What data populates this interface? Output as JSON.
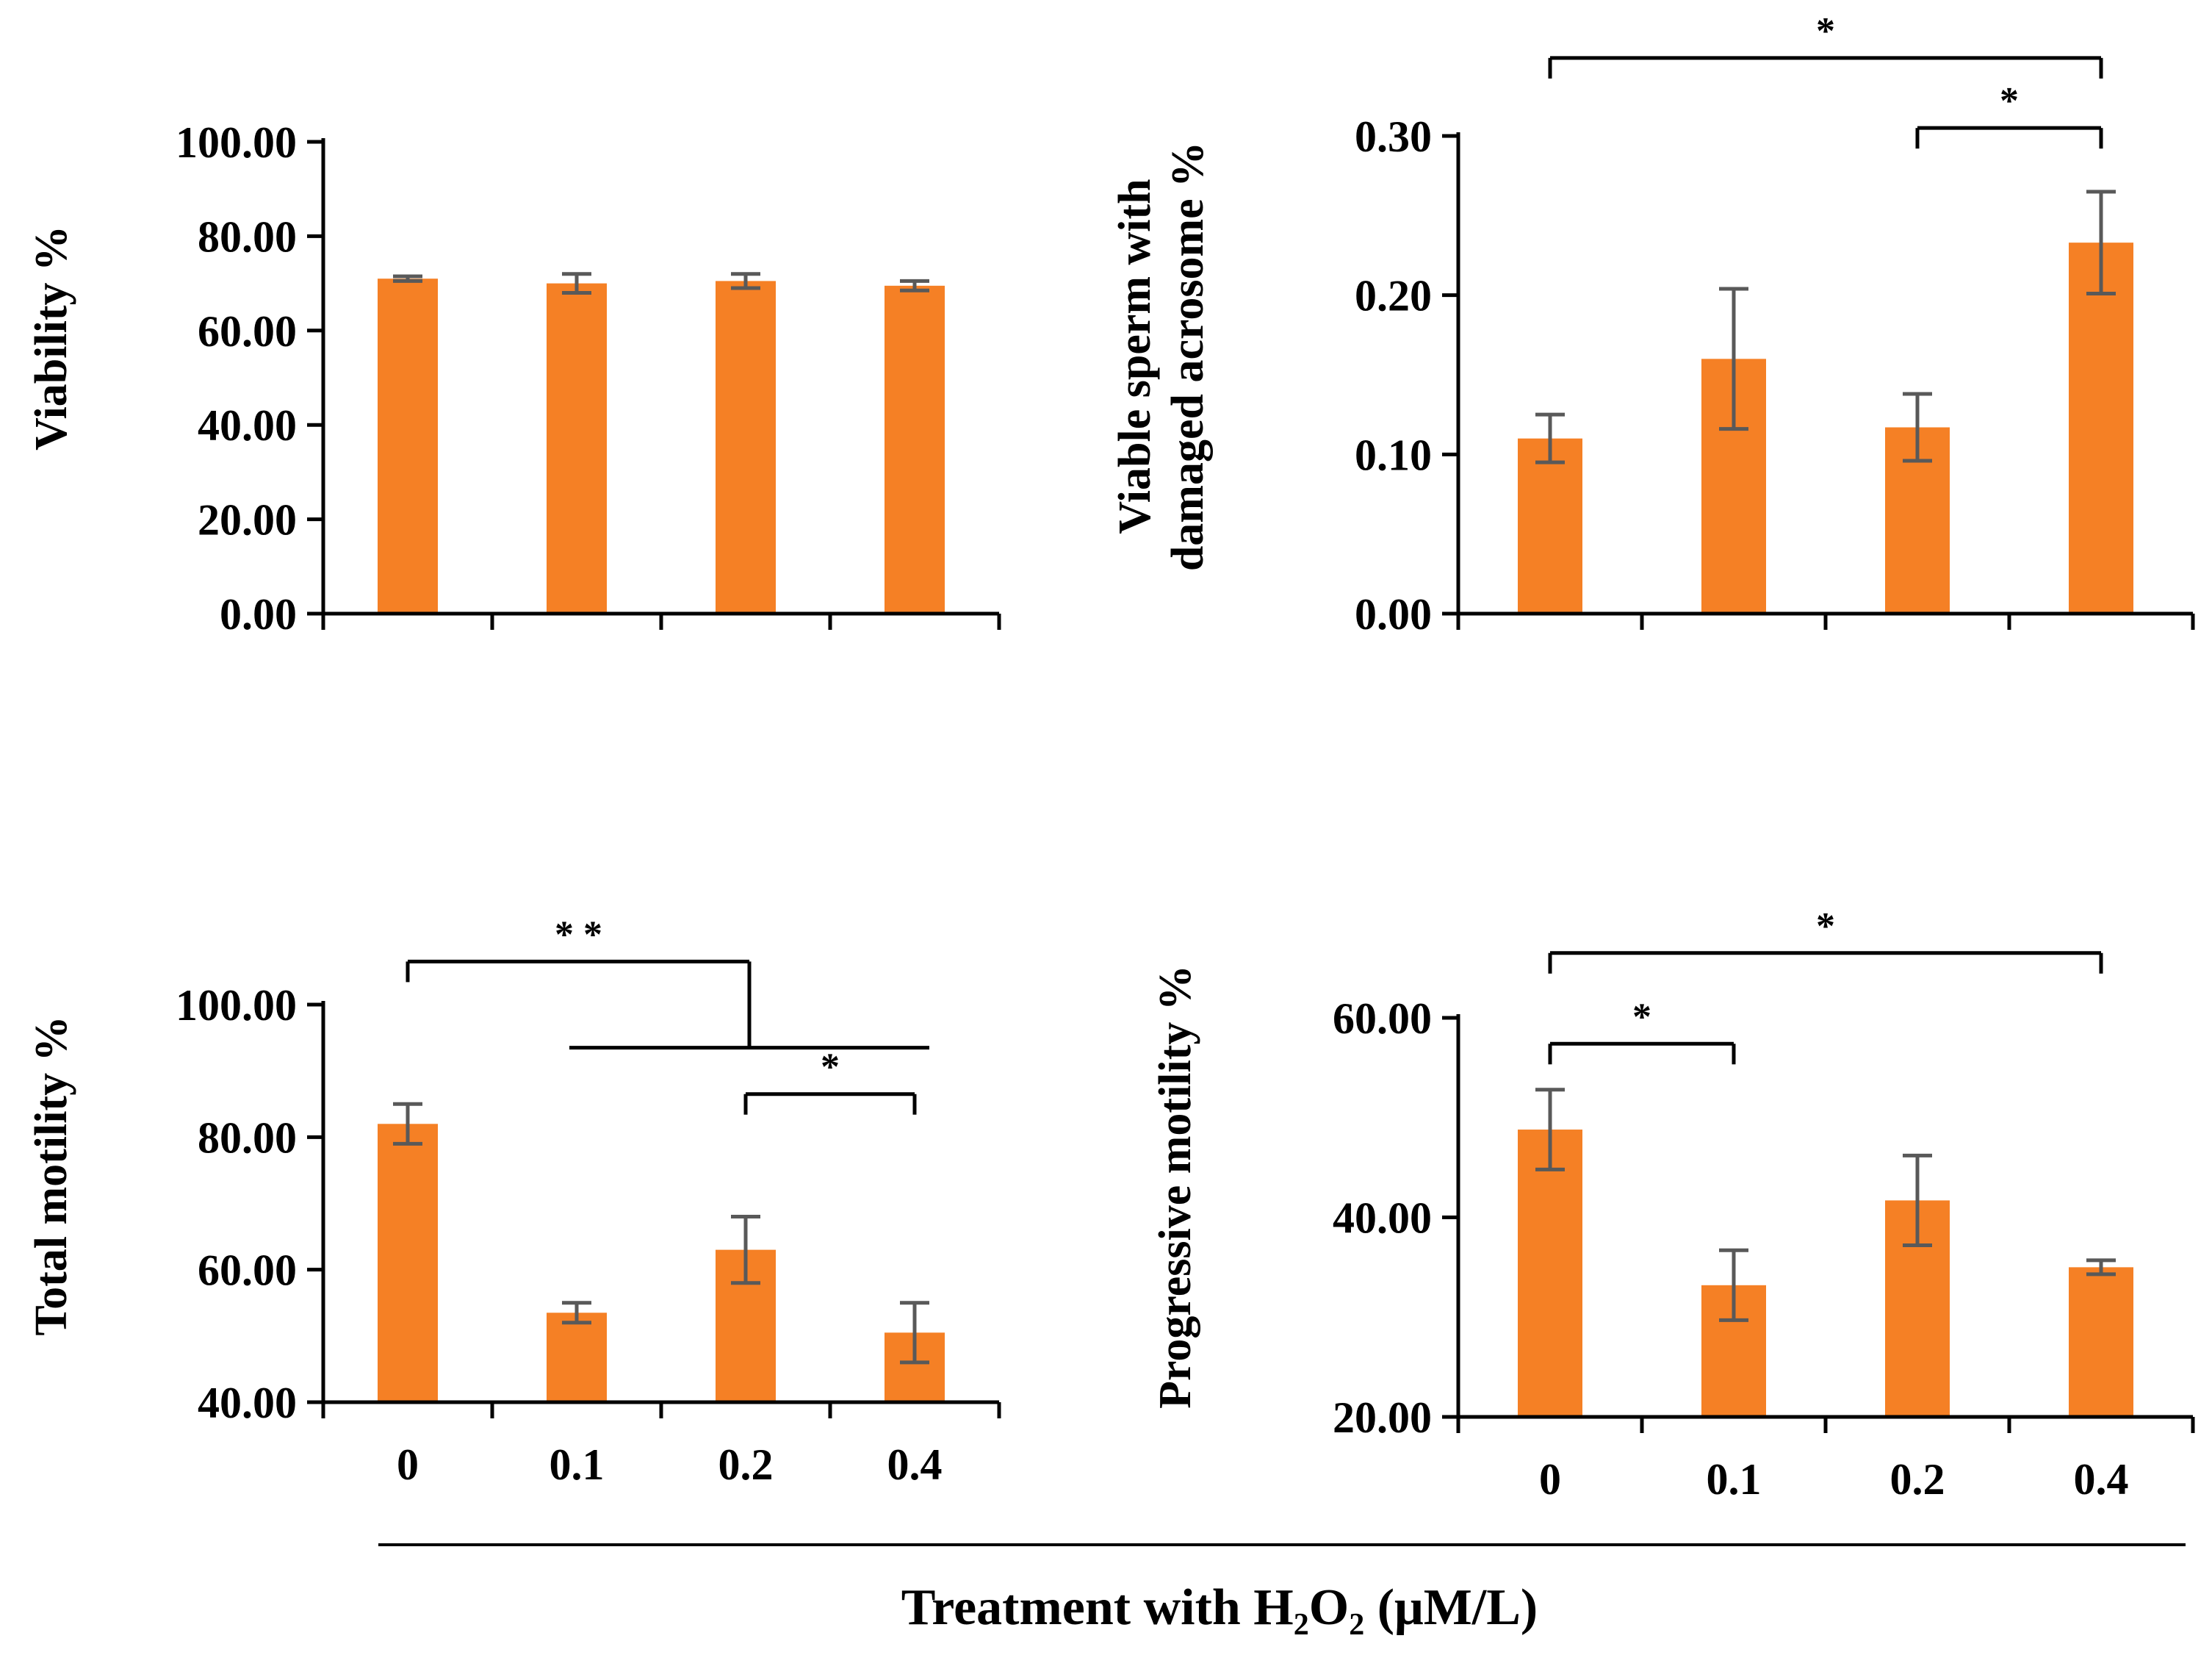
{
  "chart_data": [
    {
      "type": "bar",
      "panel": "top-left",
      "categories": [
        "0",
        "0.1",
        "0.2",
        "0.4"
      ],
      "show_category_labels": false,
      "values": [
        71.0,
        70.0,
        70.5,
        69.5
      ],
      "errors": [
        0.5,
        2.0,
        1.5,
        1.0
      ],
      "ylabel": "Viability %",
      "ylim": [
        0,
        100
      ],
      "yticks": [
        "0.00",
        "20.00",
        "40.00",
        "60.00",
        "80.00",
        "100.00"
      ],
      "significance": []
    },
    {
      "type": "bar",
      "panel": "top-right",
      "categories": [
        "0",
        "0.1",
        "0.2",
        "0.4"
      ],
      "show_category_labels": false,
      "values": [
        0.11,
        0.16,
        0.117,
        0.233
      ],
      "errors": [
        0.015,
        0.044,
        0.021,
        0.032
      ],
      "ylabel_lines": [
        "Viable sperm with",
        "damaged acrosome %"
      ],
      "ylim": [
        0,
        0.3
      ],
      "yticks": [
        "0.00",
        "0.10",
        "0.20",
        "0.30"
      ],
      "significance": [
        {
          "from": 0,
          "to": 3,
          "label": "*",
          "level": 0.349
        },
        {
          "from": 2,
          "to": 3,
          "label": "*",
          "level": 0.305
        }
      ]
    },
    {
      "type": "bar",
      "panel": "bottom-left",
      "categories": [
        "0",
        "0.1",
        "0.2",
        "0.4"
      ],
      "show_category_labels": true,
      "values": [
        82.0,
        53.5,
        63.0,
        50.5
      ],
      "errors": [
        3.0,
        1.5,
        5.0,
        4.5
      ],
      "ylabel": "Total motility %",
      "ylim": [
        40,
        100
      ],
      "yticks": [
        "40.00",
        "60.00",
        "80.00",
        "100.00"
      ],
      "significance": [
        {
          "from": 0,
          "to_group": [
            1,
            3
          ],
          "label": "* *",
          "level": 106.5,
          "group_level": 93.5
        },
        {
          "from": 2,
          "to": 3,
          "label": "*",
          "level": 86.5
        }
      ]
    },
    {
      "type": "bar",
      "panel": "bottom-right",
      "categories": [
        "0",
        "0.1",
        "0.2",
        "0.4"
      ],
      "show_category_labels": true,
      "values": [
        48.8,
        33.2,
        41.7,
        35.0
      ],
      "errors": [
        4.0,
        3.5,
        4.5,
        0.7
      ],
      "ylabel": "Progressive motility %",
      "ylim": [
        20,
        60
      ],
      "yticks": [
        "20.00",
        "40.00",
        "60.00"
      ],
      "significance": [
        {
          "from": 0,
          "to": 3,
          "label": "*",
          "level": 66.5
        },
        {
          "from": 0,
          "to": 1,
          "label": "*",
          "level": 57.4
        }
      ]
    }
  ],
  "shared_xlabel": {
    "prefix": "Treatment with H",
    "sub1": "2",
    "mid": "O",
    "sub2": "2",
    "suffix": " (μM/L)"
  },
  "colors": {
    "bar": "#f58025",
    "error_bar": "#595959",
    "axis": "#000000"
  }
}
